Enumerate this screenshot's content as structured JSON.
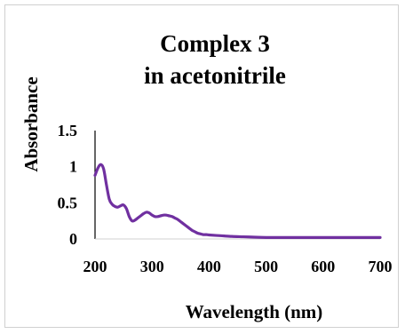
{
  "chart_data": {
    "type": "line",
    "title_lines": [
      "Complex 3",
      "in acetonitrile"
    ],
    "xlabel": "Wavelength (nm)",
    "ylabel": "Absorbance",
    "xlim": [
      200,
      700
    ],
    "ylim": [
      0,
      1.5
    ],
    "x_ticks": [
      "200",
      "300",
      "400",
      "500",
      "600",
      "700"
    ],
    "y_ticks": [
      "0",
      "0.5",
      "1",
      "1.5"
    ],
    "grid": false,
    "legend": "none",
    "series": [
      {
        "color": "#7030A0",
        "x": [
          200,
          205,
          210,
          215,
          220,
          225,
          230,
          235,
          240,
          245,
          250,
          255,
          260,
          265,
          270,
          275,
          280,
          285,
          290,
          295,
          300,
          305,
          310,
          315,
          320,
          325,
          330,
          335,
          340,
          345,
          350,
          355,
          360,
          365,
          370,
          375,
          380,
          385,
          390,
          395,
          400,
          420,
          440,
          460,
          480,
          500,
          550,
          600,
          650,
          700
        ],
        "y": [
          0.88,
          0.98,
          1.03,
          0.97,
          0.75,
          0.55,
          0.48,
          0.45,
          0.44,
          0.46,
          0.47,
          0.42,
          0.31,
          0.25,
          0.26,
          0.29,
          0.32,
          0.35,
          0.37,
          0.36,
          0.33,
          0.31,
          0.31,
          0.32,
          0.33,
          0.33,
          0.32,
          0.31,
          0.29,
          0.27,
          0.24,
          0.21,
          0.18,
          0.15,
          0.12,
          0.1,
          0.08,
          0.07,
          0.06,
          0.06,
          0.055,
          0.045,
          0.035,
          0.03,
          0.025,
          0.02,
          0.02,
          0.02,
          0.02,
          0.02
        ]
      }
    ]
  }
}
